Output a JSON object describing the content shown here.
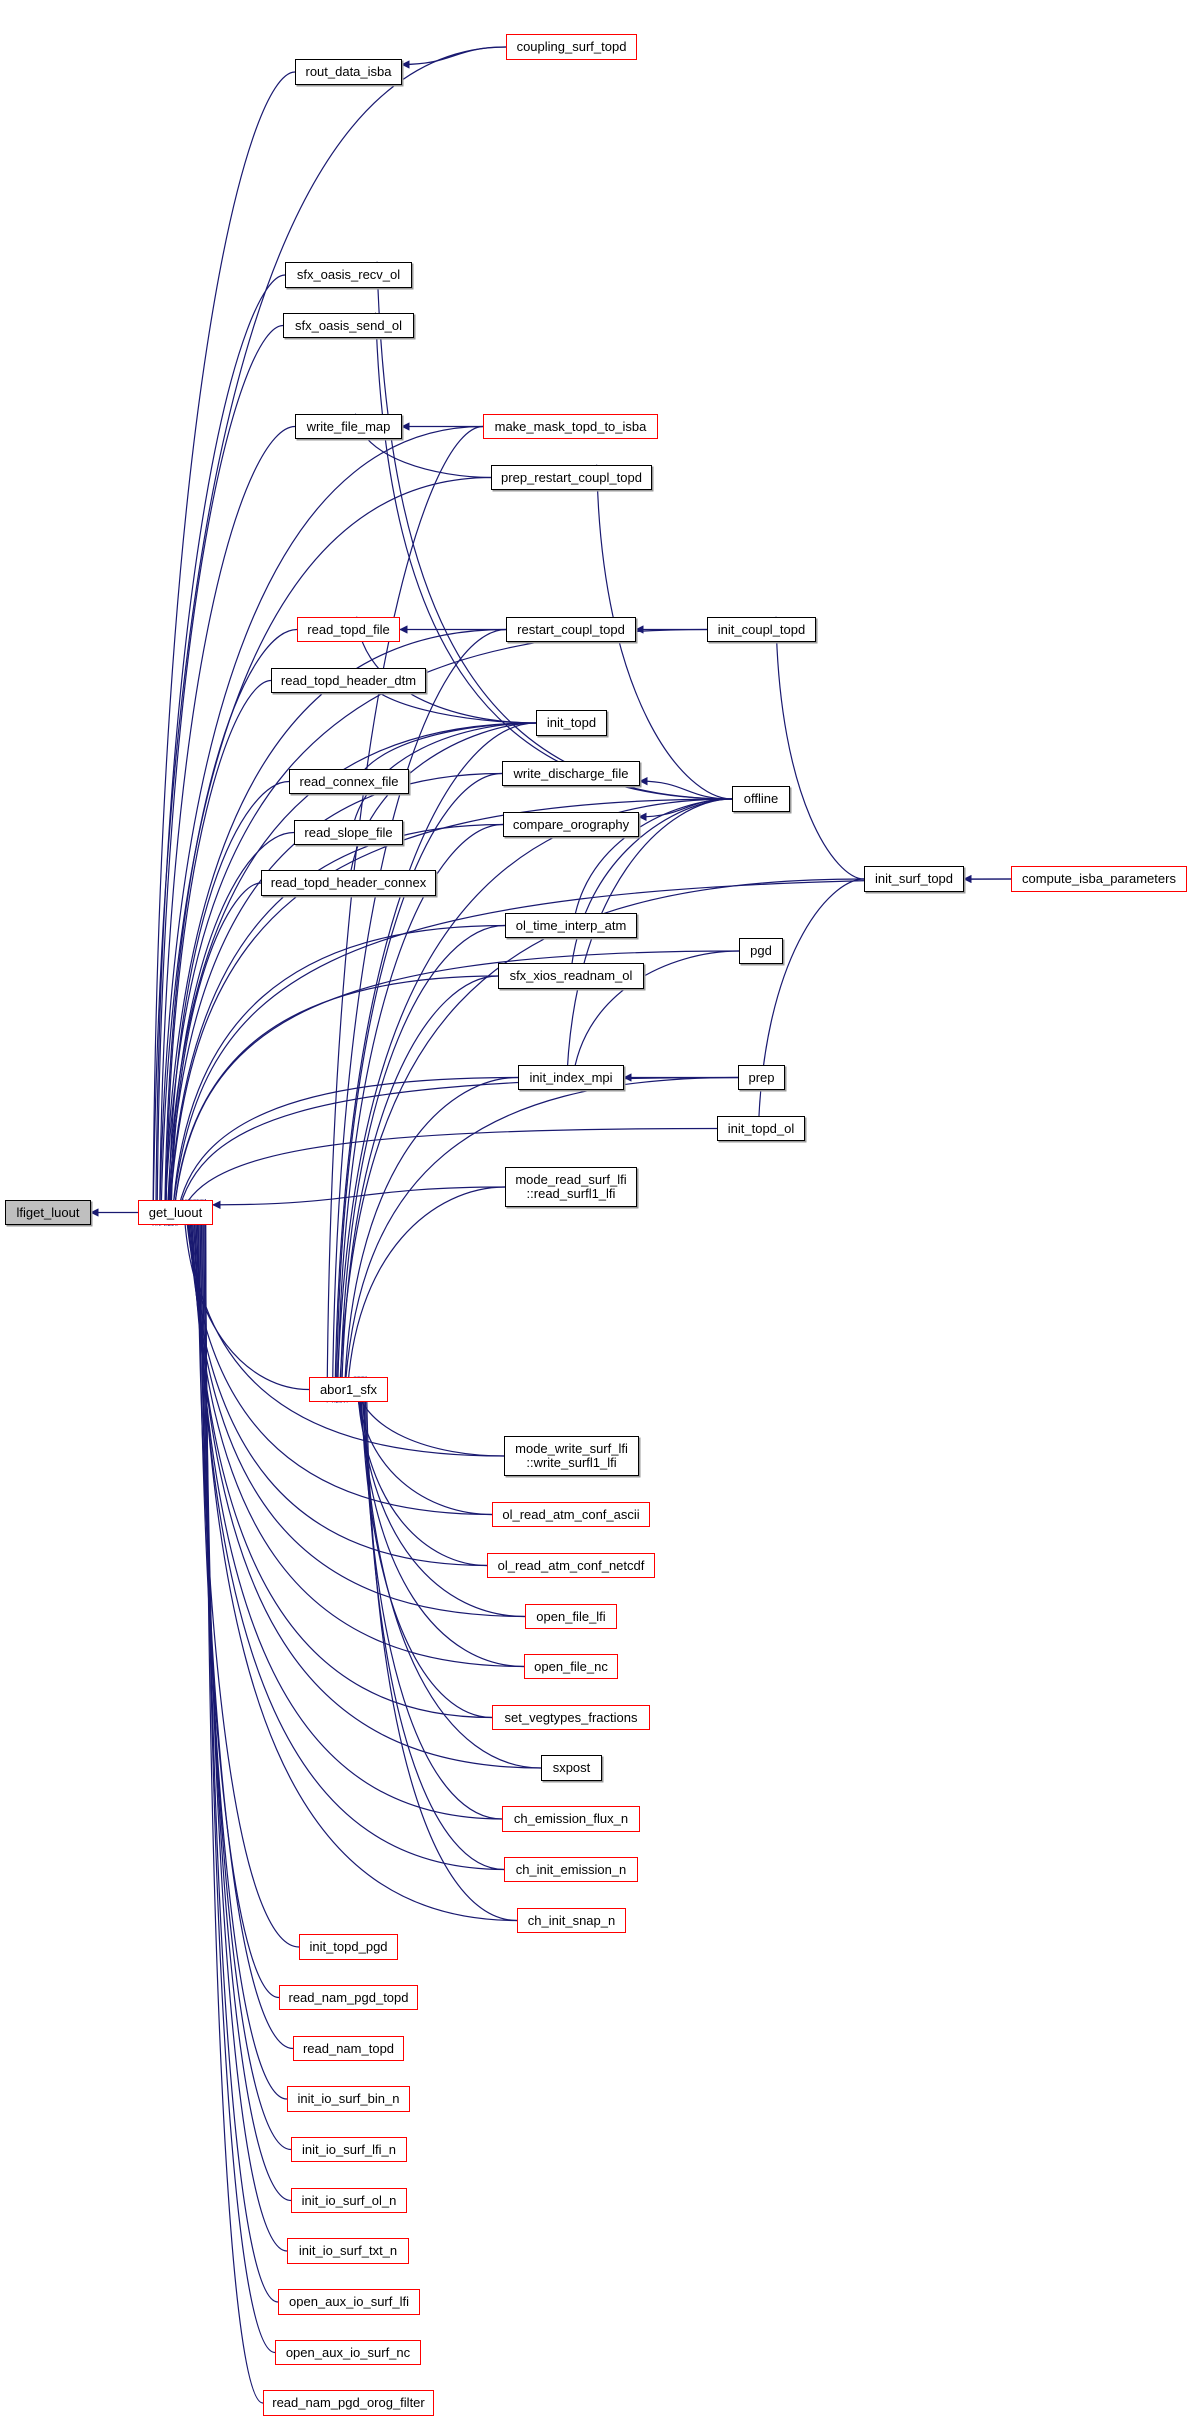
{
  "colors": {
    "edge": "#191970",
    "node_border": "#000000",
    "truncated_border": "#ff0000",
    "root_fill": "#bfbfbf"
  },
  "nodes": [
    {
      "id": "lfiget_luout",
      "label": "lfiget_luout",
      "root": true
    },
    {
      "id": "get_luout",
      "label": "get_luout",
      "red": true
    },
    {
      "id": "coupling_surf_topd",
      "label": "coupling_surf_topd",
      "red": true
    },
    {
      "id": "rout_data_isba",
      "label": "rout_data_isba"
    },
    {
      "id": "sfx_oasis_recv_ol",
      "label": "sfx_oasis_recv_ol"
    },
    {
      "id": "sfx_oasis_send_ol",
      "label": "sfx_oasis_send_ol"
    },
    {
      "id": "write_file_map",
      "label": "write_file_map"
    },
    {
      "id": "make_mask_topd_to_isba",
      "label": "make_mask_topd_to_isba",
      "red": true
    },
    {
      "id": "prep_restart_coupl_topd",
      "label": "prep_restart_coupl_topd"
    },
    {
      "id": "read_topd_file",
      "label": "read_topd_file",
      "red": true
    },
    {
      "id": "restart_coupl_topd",
      "label": "restart_coupl_topd"
    },
    {
      "id": "init_coupl_topd",
      "label": "init_coupl_topd"
    },
    {
      "id": "read_topd_header_dtm",
      "label": "read_topd_header_dtm"
    },
    {
      "id": "init_topd",
      "label": "init_topd"
    },
    {
      "id": "read_connex_file",
      "label": "read_connex_file"
    },
    {
      "id": "write_discharge_file",
      "label": "write_discharge_file"
    },
    {
      "id": "offline",
      "label": "offline"
    },
    {
      "id": "read_slope_file",
      "label": "read_slope_file"
    },
    {
      "id": "compare_orography",
      "label": "compare_orography"
    },
    {
      "id": "read_topd_header_connex",
      "label": "read_topd_header_connex"
    },
    {
      "id": "init_surf_topd",
      "label": "init_surf_topd"
    },
    {
      "id": "compute_isba_parameters",
      "label": "compute_isba_parameters",
      "red": true
    },
    {
      "id": "ol_time_interp_atm",
      "label": "ol_time_interp_atm"
    },
    {
      "id": "pgd",
      "label": "pgd"
    },
    {
      "id": "sfx_xios_readnam_ol",
      "label": "sfx_xios_readnam_ol"
    },
    {
      "id": "init_index_mpi",
      "label": "init_index_mpi"
    },
    {
      "id": "prep",
      "label": "prep"
    },
    {
      "id": "init_topd_ol",
      "label": "init_topd_ol"
    },
    {
      "id": "mode_read_surf_lfi",
      "label": "mode_read_surf_lfi\n::read_surfl1_lfi"
    },
    {
      "id": "abor1_sfx",
      "label": "abor1_sfx",
      "red": true
    },
    {
      "id": "mode_write_surf_lfi",
      "label": "mode_write_surf_lfi\n::write_surfl1_lfi"
    },
    {
      "id": "ol_read_atm_conf_ascii",
      "label": "ol_read_atm_conf_ascii",
      "red": true
    },
    {
      "id": "ol_read_atm_conf_netcdf",
      "label": "ol_read_atm_conf_netcdf",
      "red": true
    },
    {
      "id": "open_file_lfi",
      "label": "open_file_lfi",
      "red": true
    },
    {
      "id": "open_file_nc",
      "label": "open_file_nc",
      "red": true
    },
    {
      "id": "set_vegtypes_fractions",
      "label": "set_vegtypes_fractions",
      "red": true
    },
    {
      "id": "sxpost",
      "label": "sxpost"
    },
    {
      "id": "ch_emission_flux_n",
      "label": "ch_emission_flux_n",
      "red": true
    },
    {
      "id": "ch_init_emission_n",
      "label": "ch_init_emission_n",
      "red": true
    },
    {
      "id": "ch_init_snap_n",
      "label": "ch_init_snap_n",
      "red": true
    },
    {
      "id": "init_topd_pgd",
      "label": "init_topd_pgd",
      "red": true
    },
    {
      "id": "read_nam_pgd_topd",
      "label": "read_nam_pgd_topd",
      "red": true
    },
    {
      "id": "read_nam_topd",
      "label": "read_nam_topd",
      "red": true
    },
    {
      "id": "init_io_surf_bin_n",
      "label": "init_io_surf_bin_n",
      "red": true
    },
    {
      "id": "init_io_surf_lfi_n",
      "label": "init_io_surf_lfi_n",
      "red": true
    },
    {
      "id": "init_io_surf_ol_n",
      "label": "init_io_surf_ol_n",
      "red": true
    },
    {
      "id": "init_io_surf_txt_n",
      "label": "init_io_surf_txt_n",
      "red": true
    },
    {
      "id": "open_aux_io_surf_lfi",
      "label": "open_aux_io_surf_lfi",
      "red": true
    },
    {
      "id": "open_aux_io_surf_nc",
      "label": "open_aux_io_surf_nc",
      "red": true
    },
    {
      "id": "read_nam_pgd_orog_filter",
      "label": "read_nam_pgd_orog_filter",
      "red": true
    }
  ],
  "edges": [
    [
      "get_luout",
      "lfiget_luout"
    ],
    [
      "coupling_surf_topd",
      "get_luout"
    ],
    [
      "rout_data_isba",
      "get_luout"
    ],
    [
      "compute_isba_parameters",
      "get_luout"
    ],
    [
      "init_coupl_topd",
      "get_luout"
    ],
    [
      "offline",
      "get_luout"
    ],
    [
      "sfx_oasis_recv_ol",
      "get_luout"
    ],
    [
      "sfx_oasis_send_ol",
      "get_luout"
    ],
    [
      "make_mask_topd_to_isba",
      "get_luout"
    ],
    [
      "write_file_map",
      "get_luout"
    ],
    [
      "prep_restart_coupl_topd",
      "get_luout"
    ],
    [
      "restart_coupl_topd",
      "get_luout"
    ],
    [
      "read_topd_file",
      "get_luout"
    ],
    [
      "read_topd_header_dtm",
      "get_luout"
    ],
    [
      "init_topd",
      "get_luout"
    ],
    [
      "read_connex_file",
      "get_luout"
    ],
    [
      "read_slope_file",
      "get_luout"
    ],
    [
      "read_topd_header_connex",
      "get_luout"
    ],
    [
      "write_discharge_file",
      "get_luout"
    ],
    [
      "compare_orography",
      "get_luout"
    ],
    [
      "ol_time_interp_atm",
      "get_luout"
    ],
    [
      "pgd",
      "get_luout"
    ],
    [
      "sfx_xios_readnam_ol",
      "get_luout"
    ],
    [
      "init_index_mpi",
      "get_luout"
    ],
    [
      "prep",
      "get_luout"
    ],
    [
      "init_topd_ol",
      "get_luout"
    ],
    [
      "mode_read_surf_lfi",
      "get_luout"
    ],
    [
      "abor1_sfx",
      "get_luout"
    ],
    [
      "mode_write_surf_lfi",
      "get_luout"
    ],
    [
      "ol_read_atm_conf_ascii",
      "get_luout"
    ],
    [
      "ol_read_atm_conf_netcdf",
      "get_luout"
    ],
    [
      "open_file_lfi",
      "get_luout"
    ],
    [
      "open_file_nc",
      "get_luout"
    ],
    [
      "set_vegtypes_fractions",
      "get_luout"
    ],
    [
      "sxpost",
      "get_luout"
    ],
    [
      "ch_emission_flux_n",
      "get_luout"
    ],
    [
      "ch_init_emission_n",
      "get_luout"
    ],
    [
      "ch_init_snap_n",
      "get_luout"
    ],
    [
      "init_topd_pgd",
      "get_luout"
    ],
    [
      "read_nam_pgd_topd",
      "get_luout"
    ],
    [
      "read_nam_topd",
      "get_luout"
    ],
    [
      "init_io_surf_bin_n",
      "get_luout"
    ],
    [
      "init_io_surf_lfi_n",
      "get_luout"
    ],
    [
      "init_io_surf_ol_n",
      "get_luout"
    ],
    [
      "init_io_surf_txt_n",
      "get_luout"
    ],
    [
      "open_aux_io_surf_lfi",
      "get_luout"
    ],
    [
      "open_aux_io_surf_nc",
      "get_luout"
    ],
    [
      "read_nam_pgd_orog_filter",
      "get_luout"
    ],
    [
      "coupling_surf_topd",
      "rout_data_isba"
    ],
    [
      "offline",
      "sfx_oasis_recv_ol"
    ],
    [
      "offline",
      "sfx_oasis_send_ol"
    ],
    [
      "make_mask_topd_to_isba",
      "write_file_map"
    ],
    [
      "prep_restart_coupl_topd",
      "write_file_map"
    ],
    [
      "offline",
      "prep_restart_coupl_topd"
    ],
    [
      "restart_coupl_topd",
      "read_topd_file"
    ],
    [
      "init_topd",
      "read_topd_file"
    ],
    [
      "init_coupl_topd",
      "restart_coupl_topd"
    ],
    [
      "init_surf_topd",
      "init_coupl_topd"
    ],
    [
      "init_topd",
      "read_topd_header_dtm"
    ],
    [
      "init_topd",
      "read_connex_file"
    ],
    [
      "init_topd",
      "read_slope_file"
    ],
    [
      "init_topd",
      "read_topd_header_connex"
    ],
    [
      "offline",
      "write_discharge_file"
    ],
    [
      "offline",
      "compare_orography"
    ],
    [
      "offline",
      "ol_time_interp_atm"
    ],
    [
      "offline",
      "sfx_xios_readnam_ol"
    ],
    [
      "offline",
      "init_index_mpi"
    ],
    [
      "pgd",
      "init_index_mpi"
    ],
    [
      "prep",
      "init_index_mpi"
    ],
    [
      "compute_isba_parameters",
      "init_surf_topd"
    ],
    [
      "init_surf_topd",
      "init_topd_ol"
    ],
    [
      "make_mask_topd_to_isba",
      "abor1_sfx"
    ],
    [
      "restart_coupl_topd",
      "abor1_sfx"
    ],
    [
      "init_topd",
      "abor1_sfx"
    ],
    [
      "write_discharge_file",
      "abor1_sfx"
    ],
    [
      "compare_orography",
      "abor1_sfx"
    ],
    [
      "ol_time_interp_atm",
      "abor1_sfx"
    ],
    [
      "sfx_xios_readnam_ol",
      "abor1_sfx"
    ],
    [
      "init_index_mpi",
      "abor1_sfx"
    ],
    [
      "mode_read_surf_lfi",
      "abor1_sfx"
    ],
    [
      "offline",
      "abor1_sfx"
    ],
    [
      "prep",
      "abor1_sfx"
    ],
    [
      "init_surf_topd",
      "abor1_sfx"
    ],
    [
      "mode_write_surf_lfi",
      "abor1_sfx"
    ],
    [
      "ol_read_atm_conf_ascii",
      "abor1_sfx"
    ],
    [
      "ol_read_atm_conf_netcdf",
      "abor1_sfx"
    ],
    [
      "open_file_lfi",
      "abor1_sfx"
    ],
    [
      "open_file_nc",
      "abor1_sfx"
    ],
    [
      "set_vegtypes_fractions",
      "abor1_sfx"
    ],
    [
      "sxpost",
      "abor1_sfx"
    ],
    [
      "ch_emission_flux_n",
      "abor1_sfx"
    ],
    [
      "ch_init_emission_n",
      "abor1_sfx"
    ],
    [
      "ch_init_snap_n",
      "abor1_sfx"
    ]
  ]
}
